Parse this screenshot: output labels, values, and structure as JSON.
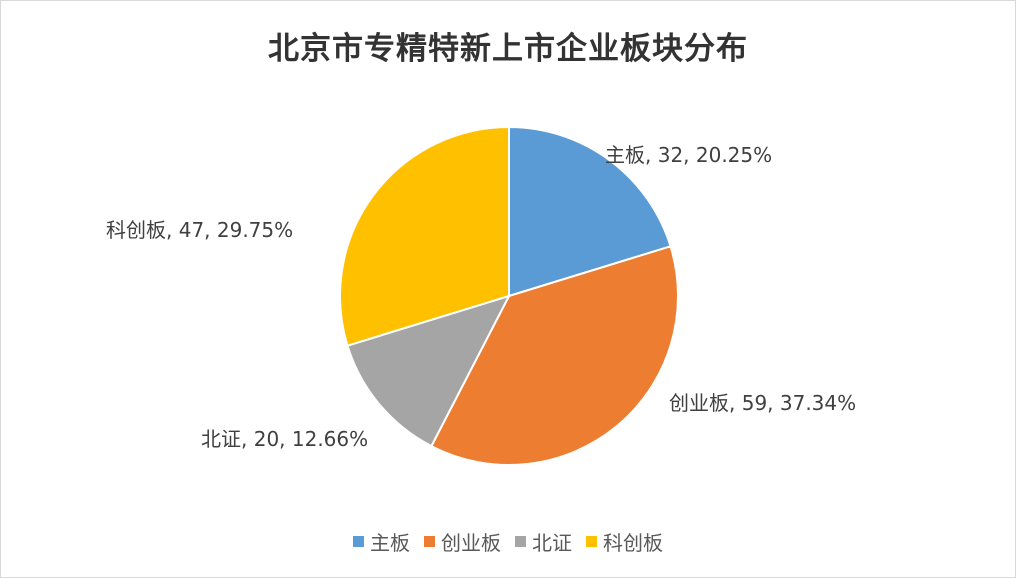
{
  "chart_data": {
    "type": "pie",
    "title": "北京市专精特新上市企业板块分布",
    "categories": [
      "主板",
      "创业板",
      "北证",
      "科创板"
    ],
    "values": [
      32,
      59,
      20,
      47
    ],
    "percents": [
      "20.25%",
      "37.34%",
      "12.66%",
      "29.75%"
    ],
    "data_labels": [
      "主板, 32, 20.25%",
      "创业板, 59, 37.34%",
      "北证, 20, 12.66%",
      "科创板, 47, 29.75%"
    ],
    "colors": [
      "#5B9BD5",
      "#ED7D31",
      "#A5A5A5",
      "#FFC000"
    ],
    "legend": "bottom",
    "start_angle": "12 o'clock, clockwise"
  }
}
